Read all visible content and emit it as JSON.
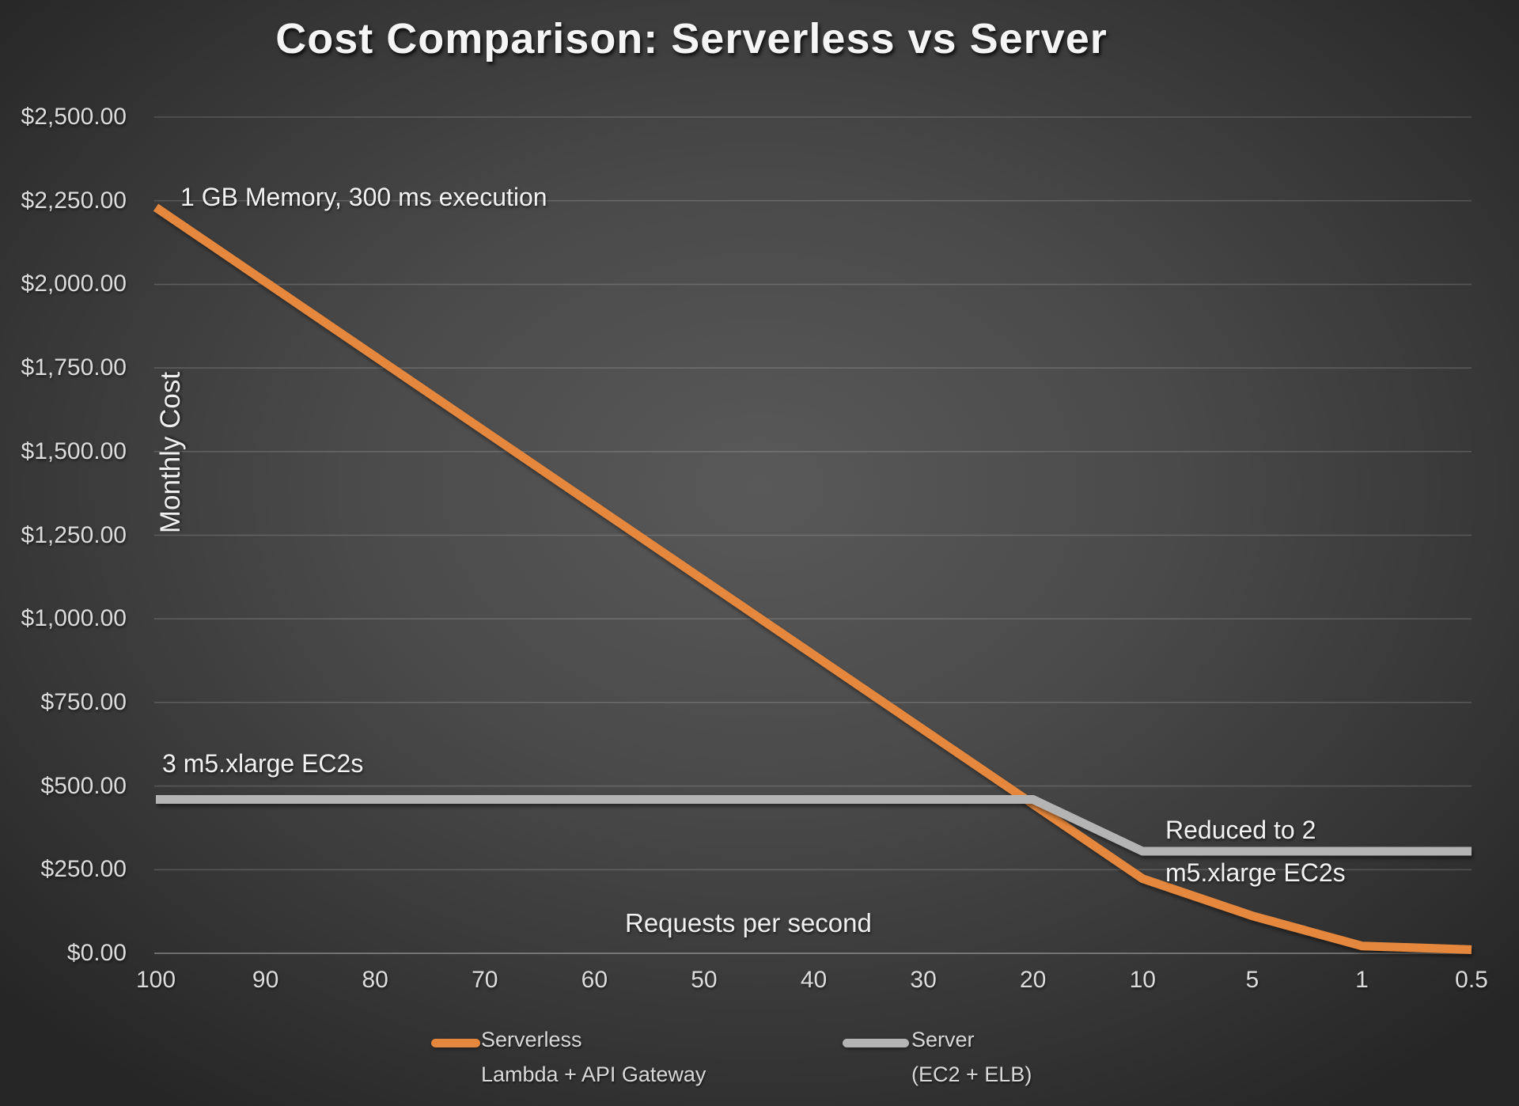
{
  "title": "Cost Comparison: Serverless vs Server",
  "axes": {
    "y_title": "Monthly Cost",
    "x_title": "Requests per second"
  },
  "annotations": {
    "serverless_config": "1 GB Memory, 300 ms execution",
    "server_config": "3 m5.xlarge EC2s",
    "server_reduced_line1": "Reduced to 2",
    "server_reduced_line2": "m5.xlarge EC2s"
  },
  "legend": [
    {
      "name": "Serverless",
      "sub": "Lambda + API Gateway",
      "color": "#E5873C"
    },
    {
      "name": "Server",
      "sub": "(EC2 + ELB)",
      "color": "#B4B4B4"
    }
  ],
  "colors": {
    "serverless_line": "#E5873C",
    "server_line": "#B4B4B4",
    "text": "#DCDCDC"
  },
  "chart_data": {
    "type": "line",
    "title": "Cost Comparison: Serverless vs Server",
    "xlabel": "Requests per second",
    "ylabel": "Monthly Cost",
    "categories": [
      "100",
      "90",
      "80",
      "70",
      "60",
      "50",
      "40",
      "30",
      "20",
      "10",
      "5",
      "1",
      "0.5"
    ],
    "series": [
      {
        "name": "Serverless",
        "subtitle": "Lambda + API Gateway",
        "color": "#E5873C",
        "values": [
          2230,
          2007,
          1784,
          1561,
          1338,
          1115,
          892,
          669,
          446,
          223,
          112,
          22,
          11
        ]
      },
      {
        "name": "Server",
        "subtitle": "(EC2 + ELB)",
        "color": "#B4B4B4",
        "values": [
          460,
          460,
          460,
          460,
          460,
          460,
          460,
          460,
          460,
          305,
          305,
          305,
          305
        ]
      }
    ],
    "ylim": [
      0,
      2500
    ],
    "y_tick_step": 250,
    "y_tick_labels": [
      "$0.00",
      "$250.00",
      "$500.00",
      "$750.00",
      "$1,000.00",
      "$1,250.00",
      "$1,500.00",
      "$1,750.00",
      "$2,000.00",
      "$2,250.00",
      "$2,500.00"
    ],
    "grid": "horizontal",
    "legend_position": "bottom"
  }
}
